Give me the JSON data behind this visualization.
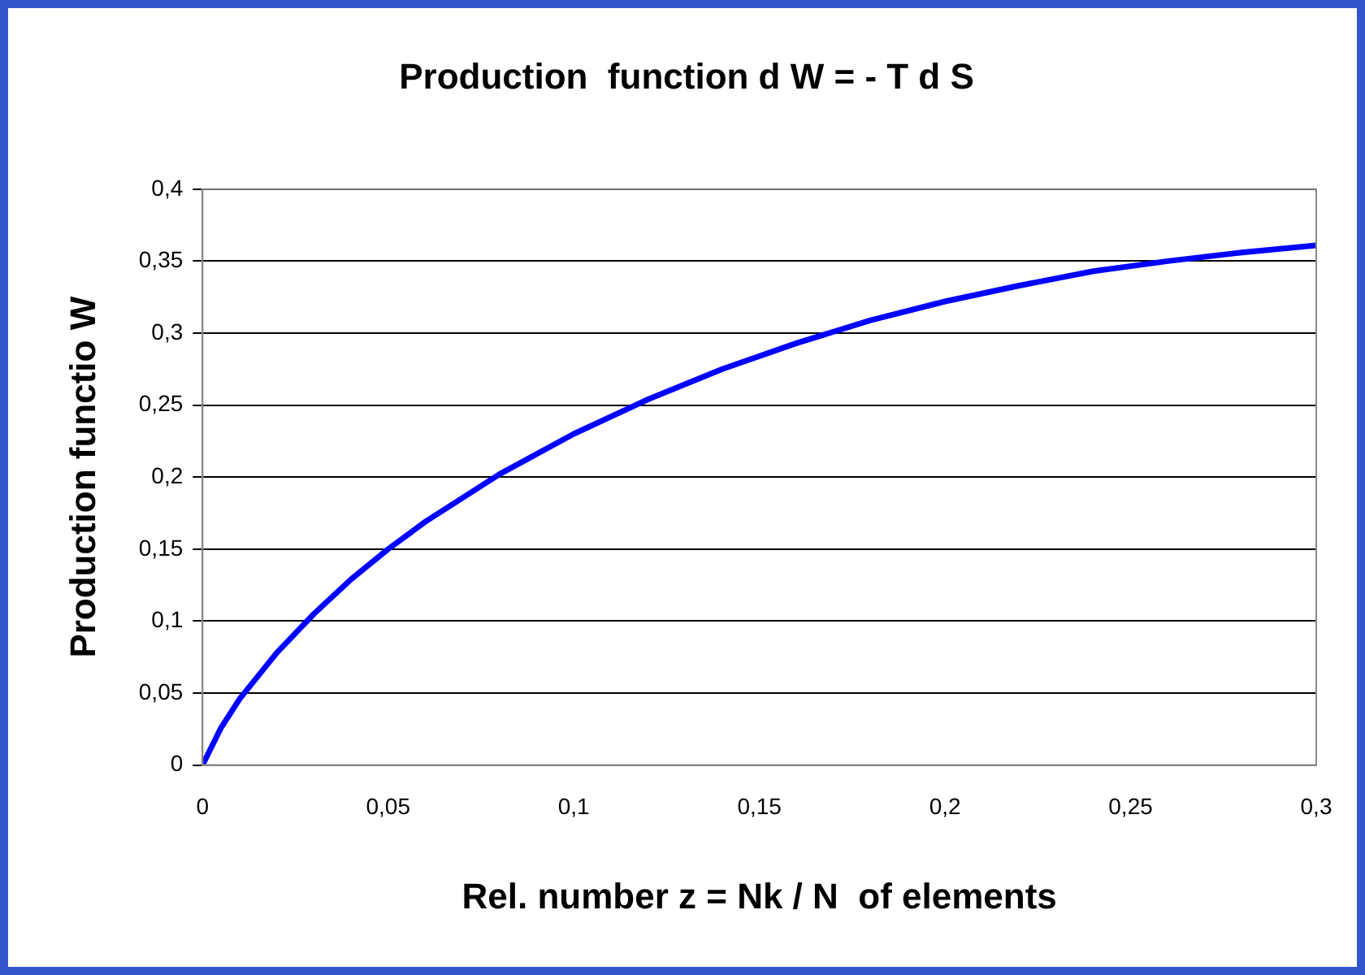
{
  "chart_data": {
    "type": "line",
    "title": "Production  function d W = - T d S",
    "xlabel": "Rel. number z = Nk / N  of elements",
    "ylabel": "Production functio W",
    "x": [
      0,
      0.005,
      0.01,
      0.02,
      0.03,
      0.04,
      0.05,
      0.06,
      0.08,
      0.1,
      0.12,
      0.14,
      0.16,
      0.18,
      0.2,
      0.22,
      0.24,
      0.26,
      0.28,
      0.3
    ],
    "series": [
      {
        "color": "#0000ff",
        "values": [
          0,
          0.026,
          0.046,
          0.078,
          0.105,
          0.129,
          0.15,
          0.169,
          0.202,
          0.23,
          0.254,
          0.275,
          0.293,
          0.309,
          0.322,
          0.333,
          0.343,
          0.35,
          0.356,
          0.361
        ]
      }
    ],
    "xlim": [
      0,
      0.3
    ],
    "xticks": [
      0,
      {
        "value": 0.05,
        "label": "0,05"
      },
      {
        "value": 0.1,
        "label": "0,1"
      },
      {
        "value": 0.15,
        "label": "0,15"
      },
      {
        "value": 0.2,
        "label": "0,2"
      },
      {
        "value": 0.25,
        "label": "0,25"
      },
      {
        "value": 0.3,
        "label": "0,3"
      }
    ],
    "ylim": [
      0,
      0.4
    ],
    "yticks": [
      0,
      {
        "value": 0.05,
        "label": "0,05"
      },
      {
        "value": 0.1,
        "label": "0,1"
      },
      {
        "value": 0.15,
        "label": "0,15"
      },
      {
        "value": 0.2,
        "label": "0,2"
      },
      {
        "value": 0.25,
        "label": "0,25"
      },
      {
        "value": 0.3,
        "label": "0,3"
      },
      {
        "value": 0.35,
        "label": "0,35"
      },
      {
        "value": 0.4,
        "label": "0,4"
      }
    ],
    "grid": "y",
    "legend": false,
    "marker": "none",
    "line_style": "solid"
  }
}
